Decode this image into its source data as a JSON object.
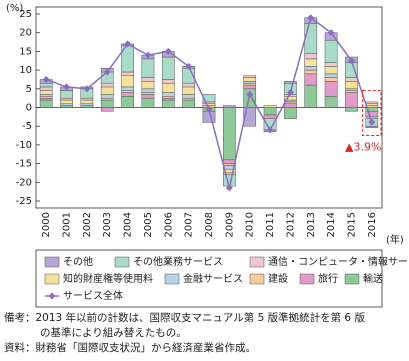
{
  "chart_data": {
    "type": "bar",
    "y_label": "(%)",
    "x_label": "(年)",
    "categories": [
      "2000",
      "2001",
      "2002",
      "2003",
      "2004",
      "2005",
      "2006",
      "2007",
      "2008",
      "2009",
      "2010",
      "2011",
      "2012",
      "2013",
      "2014",
      "2015",
      "2016"
    ],
    "ylim": [
      -25,
      25
    ],
    "yticks": [
      -25,
      -20,
      -15,
      -10,
      -5,
      0,
      5,
      10,
      15,
      20,
      25
    ],
    "series": [
      {
        "name": "輸送",
        "color": "#8fc99a",
        "values": [
          2,
          0.5,
          0.5,
          2,
          3,
          2.5,
          2,
          2,
          -1,
          -14,
          5,
          -2,
          -3,
          6,
          3,
          -1,
          -1
        ]
      },
      {
        "name": "旅行",
        "color": "#e29acb",
        "values": [
          0.5,
          0,
          0,
          -1,
          1,
          1,
          0.5,
          0,
          0,
          -1,
          1,
          -1,
          1,
          3,
          4,
          4,
          -1.5
        ]
      },
      {
        "name": "建設",
        "color": "#f6cc9a",
        "values": [
          0.5,
          0,
          0,
          0.5,
          0.5,
          0.5,
          0.5,
          0.5,
          0.5,
          -0.5,
          0.5,
          0,
          0.5,
          1,
          1,
          0.5,
          0.5
        ]
      },
      {
        "name": "金融サービス",
        "color": "#b3d3ea",
        "values": [
          0.5,
          0.5,
          0.5,
          1,
          1,
          1,
          1,
          1,
          0,
          -1,
          0.5,
          0,
          0.5,
          1,
          1,
          0.5,
          -0.5
        ]
      },
      {
        "name": "知的財産権等使用料",
        "color": "#f5e29a",
        "values": [
          1,
          1,
          1,
          2,
          3,
          2,
          2.5,
          2,
          0.5,
          -1,
          1,
          0.5,
          1,
          2,
          2,
          2,
          0.5
        ]
      },
      {
        "name": "通信・コンピュータ・情報サービス",
        "color": "#f2c6d0",
        "values": [
          1,
          0.5,
          0.5,
          1,
          1,
          1,
          1,
          1,
          0.5,
          -0.5,
          0.5,
          0,
          0.5,
          1.5,
          1,
          1,
          0.5
        ]
      },
      {
        "name": "その他業務サービス",
        "color": "#a9dbc9",
        "values": [
          1,
          2,
          2.5,
          3,
          7,
          5,
          6,
          4,
          2,
          -3,
          0,
          -3,
          3,
          8,
          6,
          4,
          -2
        ]
      },
      {
        "name": "その他",
        "color": "#b4a7d6",
        "values": [
          1,
          1,
          0.5,
          1,
          0.5,
          1,
          1.5,
          0.5,
          -3,
          0.5,
          -5,
          -0.5,
          0.5,
          1.5,
          2,
          1.5,
          -0.4
        ]
      },
      {
        "name": "サービス全体",
        "type": "line",
        "color": "#8a6fc1",
        "values": [
          7.5,
          5.5,
          5,
          9.5,
          17,
          14,
          15,
          11,
          -0.5,
          -21.5,
          3.5,
          -6,
          4,
          24,
          20,
          12.5,
          -3.9
        ]
      }
    ],
    "annotation": "▲3.9%",
    "notes": [
      "備考：2013 年以前の計数は、国際収支マニュアル第 5 版準拠統計を第 6 版",
      "の基準により組み替えたもの。",
      "資料：財務省「国際収支状況」から経済産業省作成。"
    ]
  }
}
